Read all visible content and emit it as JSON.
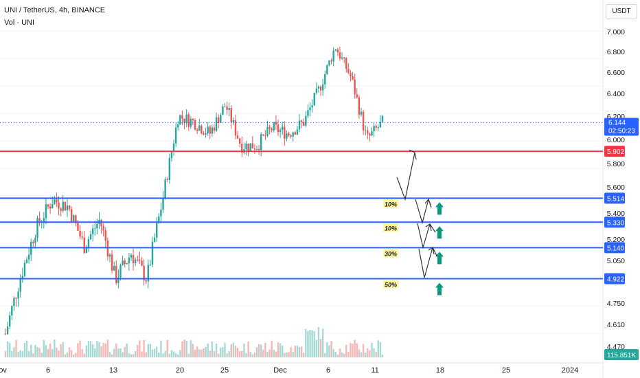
{
  "header": {
    "symbol": "UNI / TetherUS, 4h, BINANCE",
    "volume_label": "Vol · UNI"
  },
  "currency_button": "USDT",
  "colors": {
    "up": "#26a69a",
    "down": "#ef5350",
    "resistance": "#f23645",
    "support": "#2962ff",
    "arrow_up": "#089981",
    "percent_bg": "#fff59d",
    "price_label_bg": "#2962ff"
  },
  "chart_data": {
    "type": "candlestick",
    "symbol": "UNI / TetherUS",
    "interval": "4h",
    "exchange": "BINANCE",
    "y_axis": {
      "ticks": [
        "7.000",
        "6.800",
        "6.600",
        "6.400",
        "6.200",
        "6.000",
        "5.800",
        "5.600",
        "5.400",
        "5.200",
        "5.050",
        "4.750",
        "4.610",
        "4.470"
      ]
    },
    "x_axis": {
      "ticks": [
        "ov",
        "6",
        "13",
        "20",
        "25",
        "Dec",
        "6",
        "11",
        "18",
        "25",
        "2024"
      ]
    },
    "ohlc_anchor_closes": [
      4.55,
      4.95,
      5.3,
      5.5,
      5.45,
      5.15,
      5.35,
      4.92,
      5.1,
      4.92,
      5.5,
      6.2,
      6.15,
      6.05,
      6.3,
      5.95,
      5.95,
      6.1,
      6.05,
      6.15,
      6.45,
      6.85,
      6.55,
      6.0,
      6.144
    ],
    "current_price": "6.144",
    "countdown": "02:50:23",
    "levels": [
      {
        "price": "5.902",
        "kind": "resistance"
      },
      {
        "price": "5.514",
        "kind": "support",
        "allocation": "10%"
      },
      {
        "price": "5.330",
        "kind": "support",
        "allocation": "10%"
      },
      {
        "price": "5.140",
        "kind": "support",
        "allocation": "30%"
      },
      {
        "price": "4.922",
        "kind": "support",
        "allocation": "50%"
      }
    ],
    "volume_label": "115.851K"
  }
}
